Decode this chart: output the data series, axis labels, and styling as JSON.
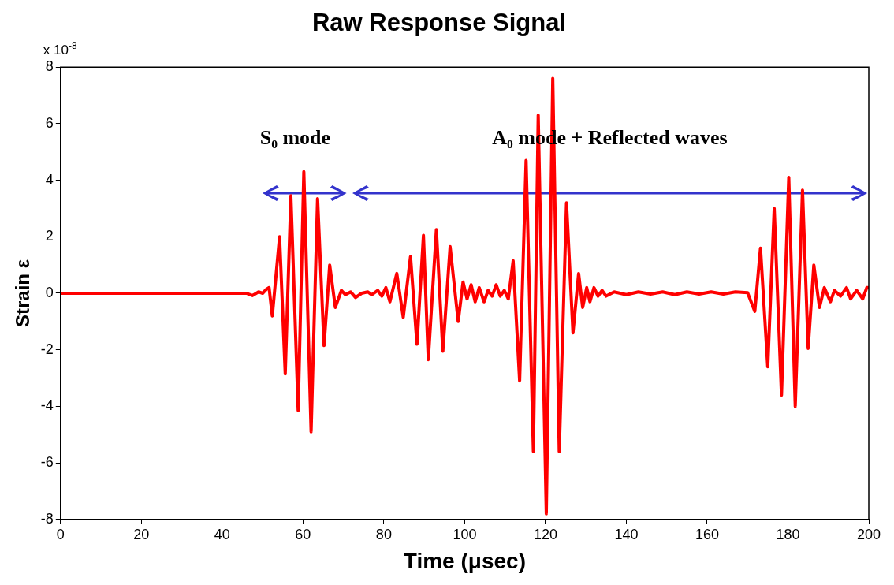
{
  "chart_data": {
    "type": "line",
    "title": "Raw Response Signal",
    "xlabel": "Time (μsec)",
    "ylabel": "Strain ε",
    "annotations": [
      "x 10$^{-8}$",
      "S₀ mode",
      "A₀ mode + Reflected waves"
    ],
    "xlim": [
      0,
      200
    ],
    "xticks": [
      0,
      20,
      40,
      60,
      80,
      100,
      120,
      140,
      160,
      180,
      200
    ],
    "ylim": [
      -8,
      8
    ],
    "yticks": [
      -8,
      -6,
      -4,
      -2,
      0,
      2,
      4,
      6,
      8
    ],
    "grid": false,
    "legend": false,
    "marker": "none",
    "line_style": "solid",
    "series": [
      {
        "color": "#ff0000",
        "x": [
          0,
          46,
          47.5,
          49,
          50,
          51,
          51.6,
          52.4,
          54.2,
          55.6,
          57,
          58.8,
          60.2,
          62,
          63.6,
          65.2,
          66.6,
          68,
          69.5,
          70.5,
          71.8,
          73,
          74.5,
          76,
          77,
          78.5,
          79.5,
          80.5,
          81.5,
          83.2,
          84.8,
          86.6,
          88.2,
          89.8,
          91,
          93,
          94.6,
          96.4,
          98.4,
          99.6,
          100.6,
          101.6,
          102.6,
          103.6,
          104.8,
          105.8,
          106.8,
          107.8,
          108.8,
          109.8,
          110.8,
          112,
          113.6,
          115.2,
          117,
          118.2,
          120.2,
          121.8,
          123.4,
          125.2,
          126.8,
          128.2,
          129.2,
          130.2,
          131,
          132,
          133,
          134,
          135,
          137,
          140,
          143,
          146,
          149,
          152,
          155,
          158,
          161,
          164,
          167,
          170,
          171.8,
          173.2,
          175,
          176.6,
          178.4,
          180.2,
          181.8,
          183.6,
          185,
          186.4,
          187.8,
          189,
          190.5,
          191.5,
          193,
          194.5,
          195.5,
          197,
          198.5,
          199.5,
          200
        ],
        "values": [
          0,
          0,
          -0.08,
          0.05,
          0,
          0.15,
          0.2,
          -0.8,
          2.0,
          -2.85,
          3.45,
          -4.15,
          4.3,
          -4.9,
          3.35,
          -1.85,
          1.0,
          -0.5,
          0.1,
          -0.05,
          0.05,
          -0.15,
          0,
          0.05,
          -0.05,
          0.1,
          -0.1,
          0.2,
          -0.3,
          0.7,
          -0.85,
          1.3,
          -1.8,
          2.05,
          -2.35,
          2.25,
          -2.05,
          1.65,
          -1.0,
          0.4,
          -0.2,
          0.3,
          -0.3,
          0.2,
          -0.3,
          0.1,
          -0.1,
          0.3,
          -0.1,
          0.1,
          -0.2,
          1.15,
          -3.1,
          4.7,
          -5.6,
          6.3,
          -7.8,
          7.6,
          -5.6,
          3.2,
          -1.4,
          0.7,
          -0.5,
          0.2,
          -0.3,
          0.2,
          -0.1,
          0.1,
          -0.1,
          0.05,
          -0.05,
          0.05,
          -0.03,
          0.05,
          -0.05,
          0.05,
          -0.03,
          0.05,
          -0.03,
          0.05,
          0.02,
          -0.64,
          1.6,
          -2.6,
          3.0,
          -3.6,
          4.1,
          -4.0,
          3.65,
          -1.95,
          1.0,
          -0.5,
          0.2,
          -0.3,
          0.1,
          -0.1,
          0.2,
          -0.2,
          0.1,
          -0.2,
          0.2,
          0.2
        ]
      }
    ]
  }
}
